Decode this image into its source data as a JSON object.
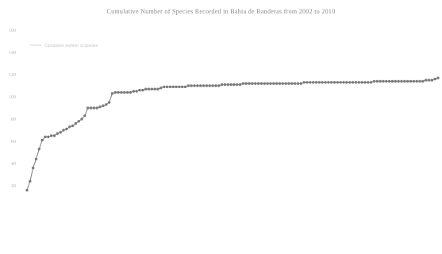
{
  "chart_data": {
    "type": "line",
    "title": "Cumulative Number of Species Recorded in Bahia de Banderas from 2002 to 2010",
    "xlabel": "",
    "ylabel": "",
    "ylim": [
      0,
      160
    ],
    "y_ticks": [
      "20",
      "40",
      "60",
      "80",
      "100",
      "120",
      "140",
      "160"
    ],
    "grid": false,
    "legend_position": "top-left",
    "series": [
      {
        "name": "Cumulative number of species",
        "color": "#7a7a7a",
        "values": [
          16,
          24,
          36,
          44,
          53,
          61,
          64,
          64,
          65,
          65,
          67,
          68,
          70,
          71,
          73,
          74,
          76,
          78,
          80,
          83,
          90,
          90,
          90,
          90,
          91,
          92,
          93,
          95,
          103,
          104,
          104,
          104,
          104,
          104,
          104,
          105,
          105,
          106,
          106,
          107,
          107,
          107,
          107,
          107,
          108,
          109,
          109,
          109,
          109,
          109,
          109,
          109,
          109,
          110,
          110,
          110,
          110,
          110,
          110,
          110,
          110,
          110,
          110,
          110,
          111,
          111,
          111,
          111,
          111,
          111,
          111,
          112,
          112,
          112,
          112,
          112,
          112,
          112,
          112,
          112,
          112,
          112,
          112,
          112,
          112,
          112,
          112,
          112,
          112,
          112,
          112,
          113,
          113,
          113,
          113,
          113,
          113,
          113,
          113,
          113,
          113,
          113,
          113,
          113,
          113,
          113,
          113,
          113,
          113,
          113,
          113,
          113,
          113,
          113,
          114,
          114,
          114,
          114,
          114,
          114,
          114,
          114,
          114,
          114,
          114,
          114,
          114,
          114,
          114,
          114,
          114,
          115,
          115,
          115,
          116,
          117
        ]
      }
    ]
  }
}
